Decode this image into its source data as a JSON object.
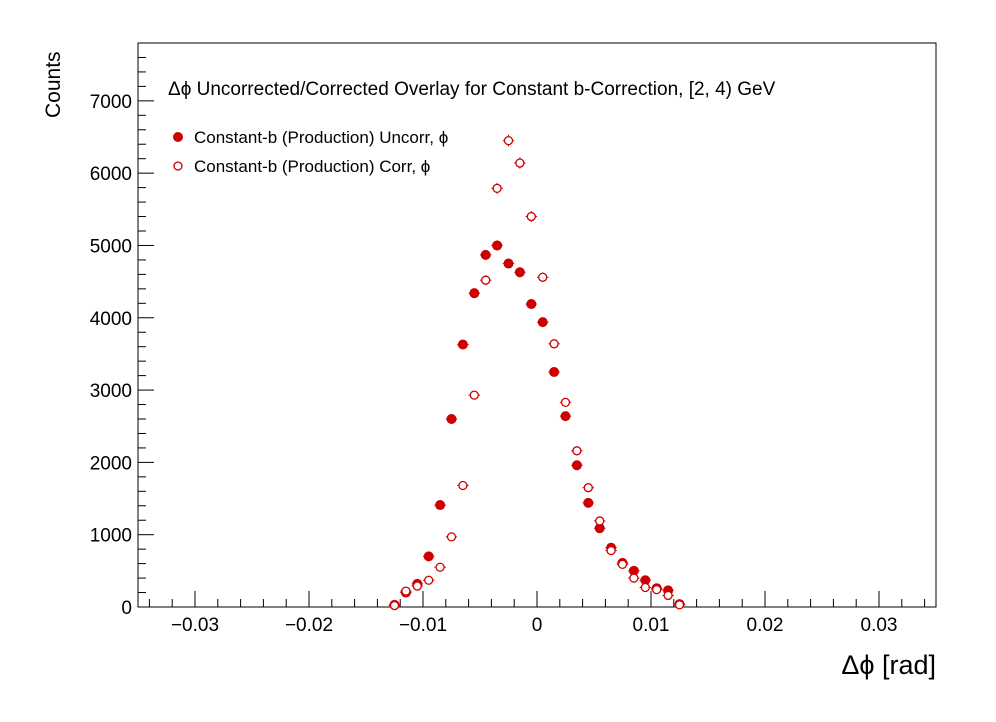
{
  "chart_data": {
    "type": "scatter",
    "title": "Δϕ Uncorrected/Corrected Overlay for Constant b-Correction, [2, 4) GeV",
    "xlabel": "Δϕ  [rad]",
    "ylabel": "Counts",
    "xlim": [
      -0.035,
      0.035
    ],
    "ylim": [
      0,
      7800
    ],
    "xticks": [
      -0.03,
      -0.02,
      -0.01,
      0,
      0.01,
      0.02,
      0.03
    ],
    "xtick_labels": [
      "−0.03",
      "−0.02",
      "−0.01",
      "0",
      "0.01",
      "0.02",
      "0.03"
    ],
    "yticks": [
      0,
      1000,
      2000,
      3000,
      4000,
      5000,
      6000,
      7000
    ],
    "ytick_labels": [
      "0",
      "1000",
      "2000",
      "3000",
      "4000",
      "5000",
      "6000",
      "7000"
    ],
    "legend_position": "top-left",
    "grid": false,
    "series": [
      {
        "name": "Constant-b (Production) Uncorr, ϕ",
        "marker": "filled-circle",
        "color": "#cc0000",
        "x": [
          -0.0125,
          -0.0115,
          -0.0105,
          -0.0095,
          -0.0085,
          -0.0075,
          -0.0065,
          -0.0055,
          -0.0045,
          -0.0035,
          -0.0025,
          -0.0015,
          -0.0005,
          0.0005,
          0.0015,
          0.0025,
          0.0035,
          0.0045,
          0.0055,
          0.0065,
          0.0075,
          0.0085,
          0.0095,
          0.0105,
          0.0115,
          0.0125
        ],
        "y": [
          30,
          200,
          320,
          700,
          1410,
          2600,
          3630,
          4340,
          4870,
          5000,
          4750,
          4630,
          4190,
          3940,
          3250,
          2640,
          1960,
          1440,
          1090,
          820,
          610,
          500,
          370,
          260,
          230,
          40
        ]
      },
      {
        "name": "Constant-b (Production) Corr, ϕ",
        "marker": "open-circle",
        "color": "#cc0000",
        "x": [
          -0.0125,
          -0.0115,
          -0.0105,
          -0.0095,
          -0.0085,
          -0.0075,
          -0.0065,
          -0.0055,
          -0.0045,
          -0.0035,
          -0.0025,
          -0.0015,
          -0.0005,
          0.0005,
          0.0015,
          0.0025,
          0.0035,
          0.0045,
          0.0055,
          0.0065,
          0.0075,
          0.0085,
          0.0095,
          0.0105,
          0.0115,
          0.0125
        ],
        "y": [
          20,
          220,
          290,
          370,
          550,
          970,
          1680,
          2930,
          4520,
          5790,
          6450,
          6140,
          5400,
          4560,
          3640,
          2830,
          2160,
          1650,
          1190,
          780,
          590,
          400,
          270,
          240,
          160,
          30
        ]
      }
    ]
  }
}
